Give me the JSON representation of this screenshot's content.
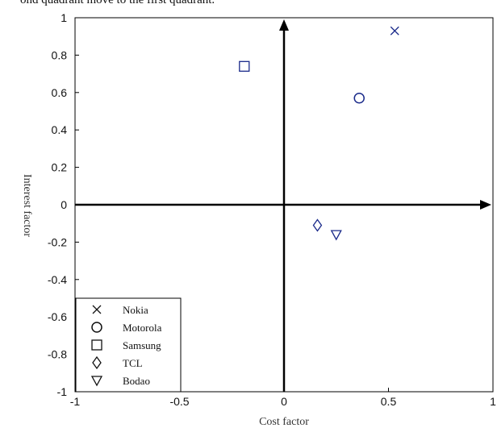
{
  "caption": "ond quadrant move to the first quadrant.",
  "chart_data": {
    "type": "scatter",
    "xlabel": "Cost factor",
    "ylabel": "Interest factor",
    "xlim": [
      -1,
      1
    ],
    "ylim": [
      -1,
      1
    ],
    "xticks": [
      "-1",
      "-0.5",
      "0",
      "0.5",
      "1"
    ],
    "yticks": [
      "1",
      "0.8",
      "0.6",
      "0.4",
      "0.2",
      "0",
      "-0.2",
      "-0.4",
      "-0.6",
      "-0.8",
      "-1"
    ],
    "legend_position": "bottom-left",
    "grid": false,
    "series": [
      {
        "name": "Nokia",
        "marker": "x-icon",
        "x": [
          0.53
        ],
        "y": [
          0.93
        ]
      },
      {
        "name": "Motorola",
        "marker": "circle-icon",
        "x": [
          0.36
        ],
        "y": [
          0.57
        ]
      },
      {
        "name": "Samsung",
        "marker": "square-icon",
        "x": [
          -0.19
        ],
        "y": [
          0.74
        ]
      },
      {
        "name": "TCL",
        "marker": "diamond-icon",
        "x": [
          0.16
        ],
        "y": [
          -0.11
        ]
      },
      {
        "name": "Bodao",
        "marker": "triangle-down-icon",
        "x": [
          0.25
        ],
        "y": [
          -0.16
        ]
      }
    ],
    "marker_color": "#1a2a8a",
    "axis_color": "#000000"
  }
}
